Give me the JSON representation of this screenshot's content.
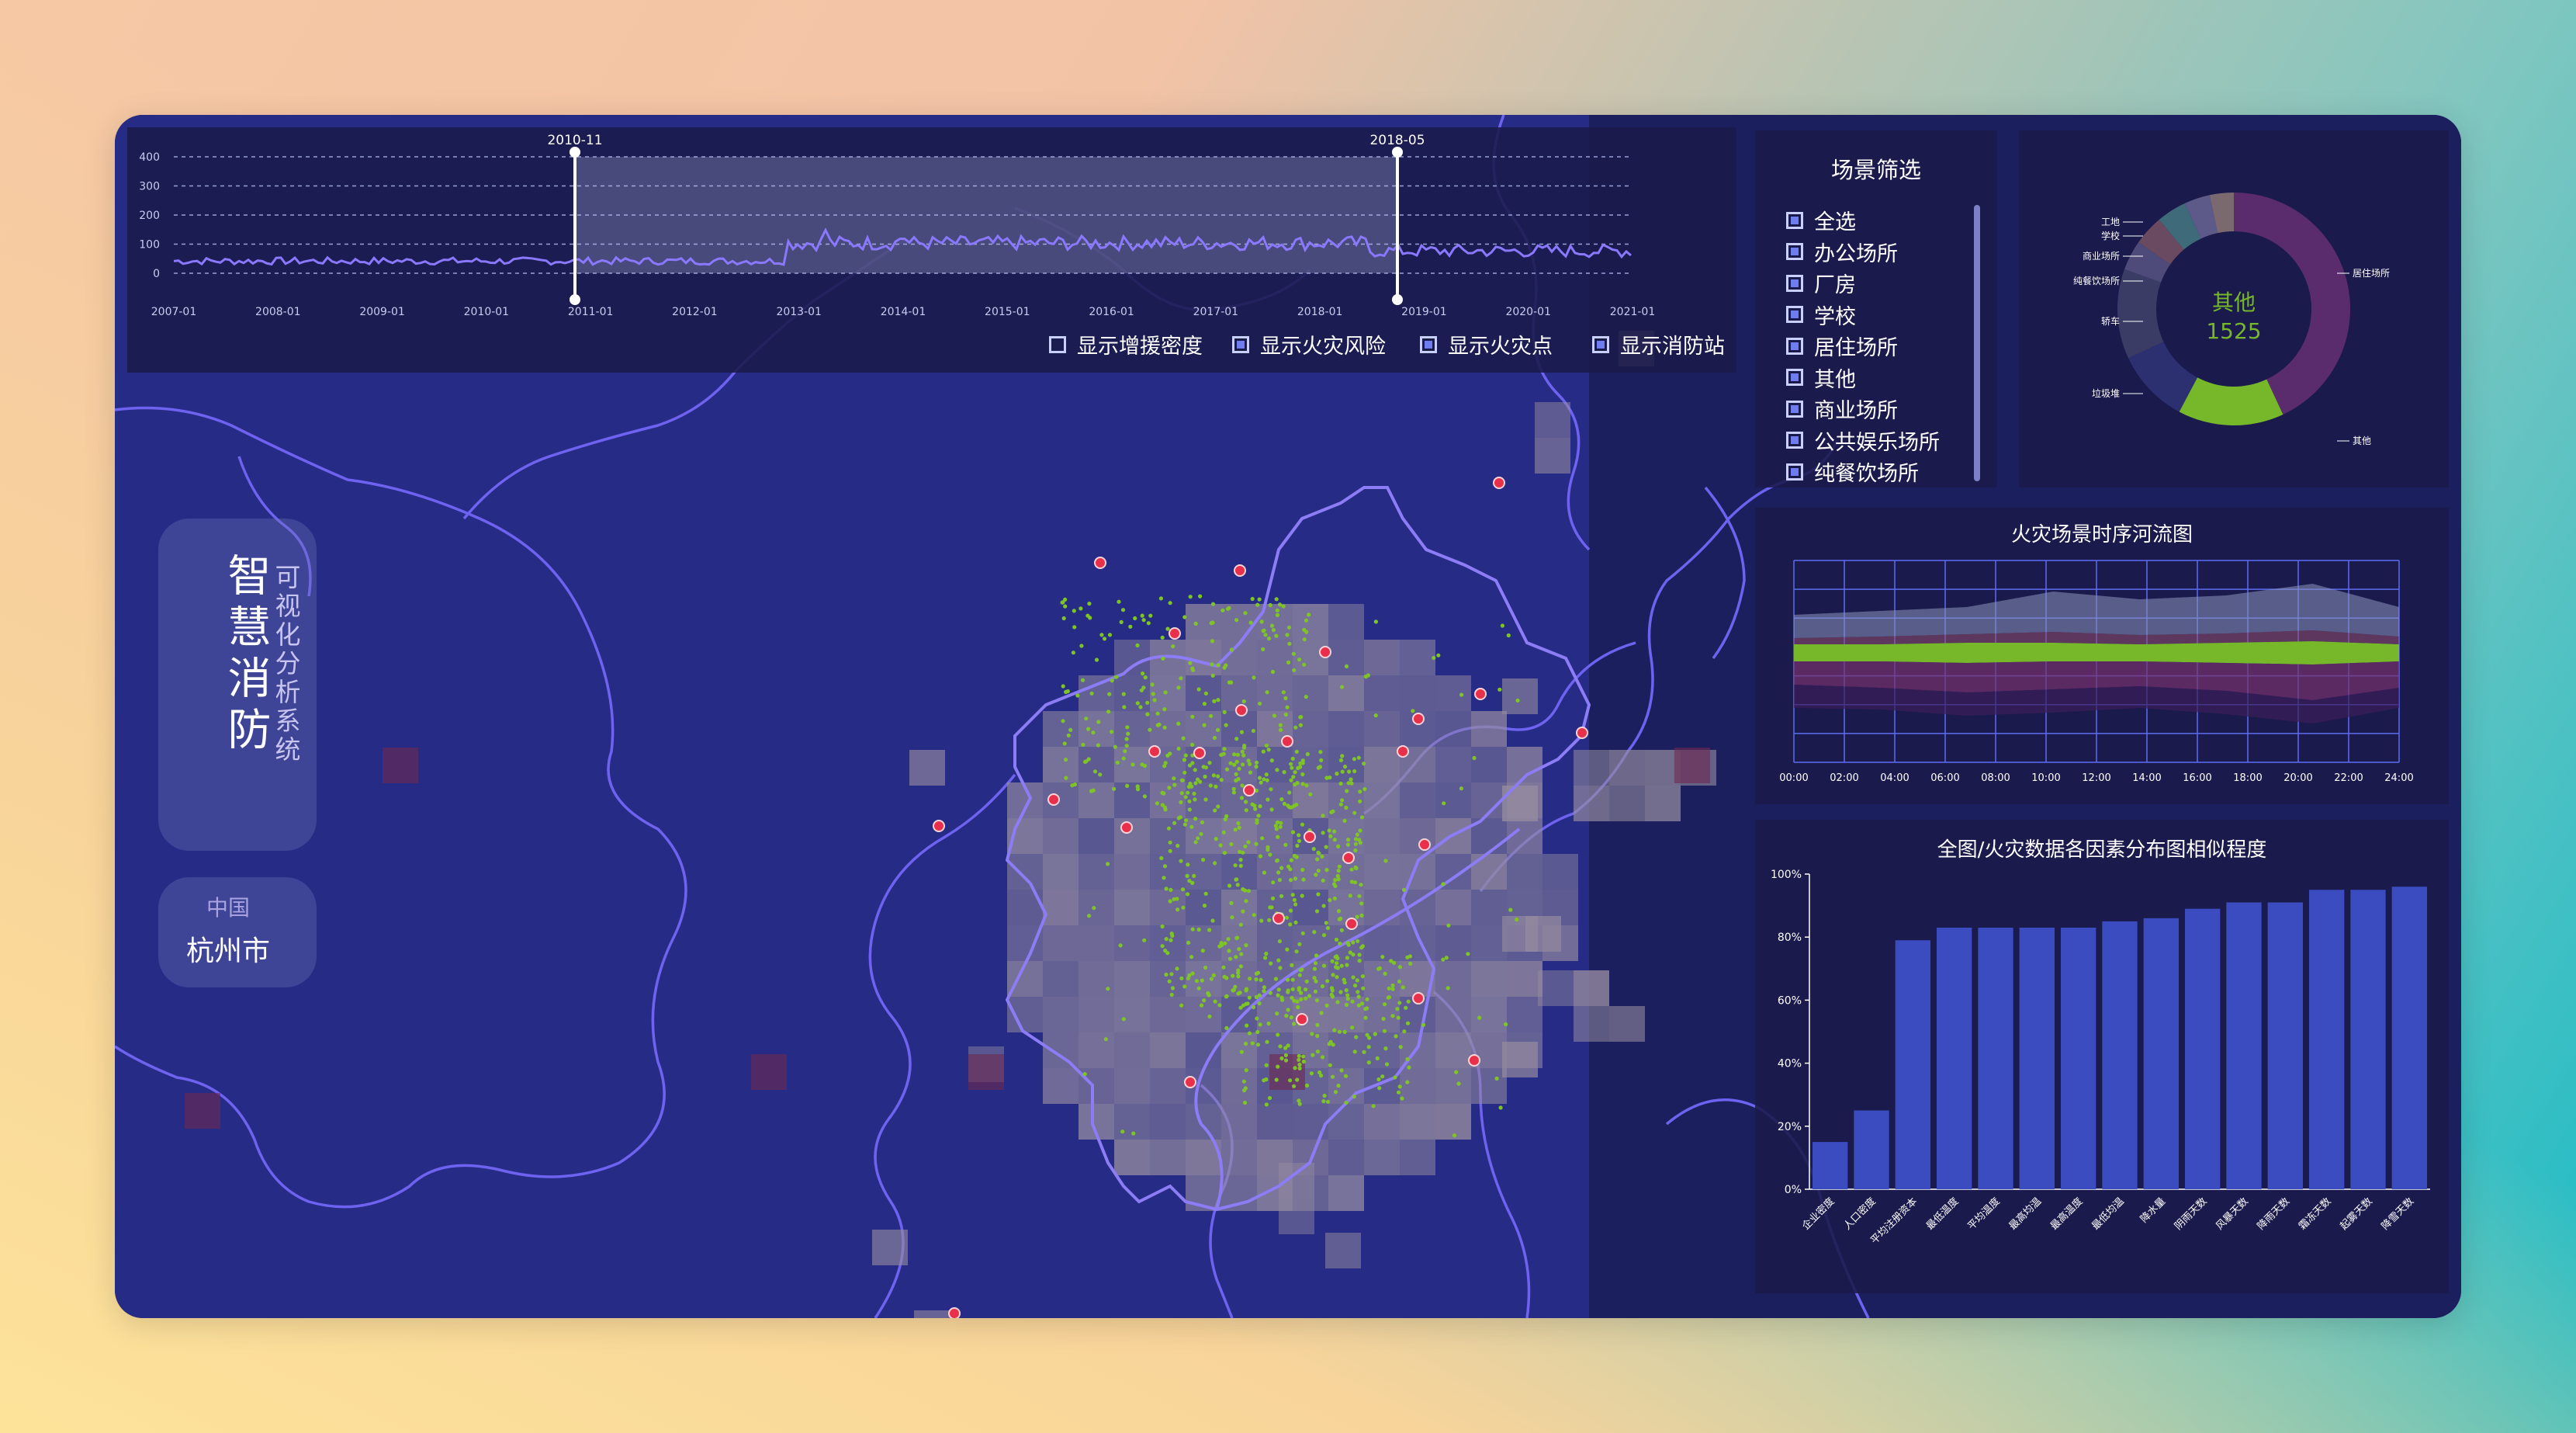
{
  "app": {
    "title": "智慧消防",
    "subtitle": "可视化分析系统",
    "country": "中国",
    "city": "杭州市"
  },
  "timeline": {
    "handle_start": "2010-11",
    "handle_end": "2018-05",
    "y_ticks": [
      "400",
      "300",
      "200",
      "100",
      "0"
    ],
    "x_ticks": [
      "2007-01",
      "2008-01",
      "2009-01",
      "2010-01",
      "2011-01",
      "2012-01",
      "2013-01",
      "2014-01",
      "2015-01",
      "2016-01",
      "2017-01",
      "2018-01",
      "2019-01",
      "2020-01",
      "2021-01"
    ],
    "toggles": [
      {
        "label": "显示增援密度",
        "checked": false
      },
      {
        "label": "显示火灾风险",
        "checked": true
      },
      {
        "label": "显示火灾点",
        "checked": true
      },
      {
        "label": "显示消防站",
        "checked": true
      }
    ]
  },
  "scene_filter": {
    "title": "场景筛选",
    "items": [
      "全选",
      "办公场所",
      "厂房",
      "学校",
      "居住场所",
      "其他",
      "商业场所",
      "公共娱乐场所",
      "纯餐饮场所"
    ]
  },
  "donut": {
    "center_label": "其他",
    "center_value": "1525",
    "labels_left": [
      "工地",
      "学校",
      "商业场所",
      "纯餐饮场所",
      "轿车",
      "垃圾堆"
    ],
    "labels_right": [
      "居住场所",
      "其他"
    ],
    "accent_color": "#76b82a"
  },
  "stream": {
    "title": "火灾场景时序河流图",
    "x_ticks": [
      "00:00",
      "02:00",
      "04:00",
      "06:00",
      "08:00",
      "10:00",
      "12:00",
      "14:00",
      "16:00",
      "18:00",
      "20:00",
      "22:00",
      "24:00"
    ]
  },
  "chart_data": {
    "type": "bar",
    "title": "全图/火灾数据各因素分布图相似程度",
    "categories": [
      "企业密度",
      "人口密度",
      "平均注册资本",
      "最低温度",
      "平均温度",
      "最高均温",
      "最高温度",
      "最低均温",
      "降水量",
      "阴雨天数",
      "风暴天数",
      "降雨天数",
      "霜冻天数",
      "起雾天数",
      "降雪天数"
    ],
    "values": [
      15,
      25,
      79,
      83,
      83,
      83,
      83,
      85,
      86,
      89,
      91,
      91,
      95,
      95,
      96
    ],
    "ylim": [
      0,
      100
    ],
    "y_ticks": [
      "0%",
      "20%",
      "40%",
      "60%",
      "80%",
      "100%"
    ],
    "bar_color": "#3b4cc0"
  }
}
